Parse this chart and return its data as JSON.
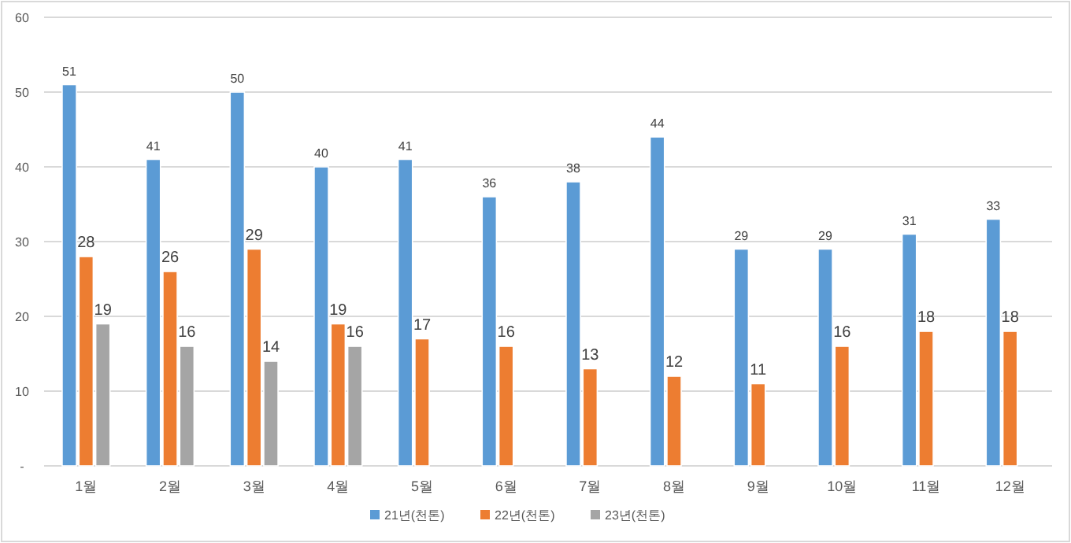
{
  "chart_data": {
    "type": "bar",
    "categories": [
      "1월",
      "2월",
      "3월",
      "4월",
      "5월",
      "6월",
      "7월",
      "8월",
      "9월",
      "10월",
      "11월",
      "12월"
    ],
    "series": [
      {
        "name": "21년(천톤)",
        "color": "#5b9bd5",
        "values": [
          51,
          41,
          50,
          40,
          41,
          36,
          38,
          44,
          29,
          29,
          31,
          33
        ]
      },
      {
        "name": "22년(천톤)",
        "color": "#ed7d31",
        "values": [
          28,
          26,
          29,
          19,
          17,
          16,
          13,
          12,
          11,
          16,
          18,
          18
        ]
      },
      {
        "name": "23년(천톤)",
        "color": "#a5a5a5",
        "values": [
          19,
          16,
          14,
          16,
          null,
          null,
          null,
          null,
          null,
          null,
          null,
          null
        ]
      }
    ],
    "ylim": [
      0,
      60
    ],
    "yticks": [
      {
        "value": 0,
        "label": "-"
      },
      10,
      20,
      30,
      40,
      50,
      60
    ],
    "grid": "y",
    "legend": "bottom",
    "data_labels": true
  }
}
